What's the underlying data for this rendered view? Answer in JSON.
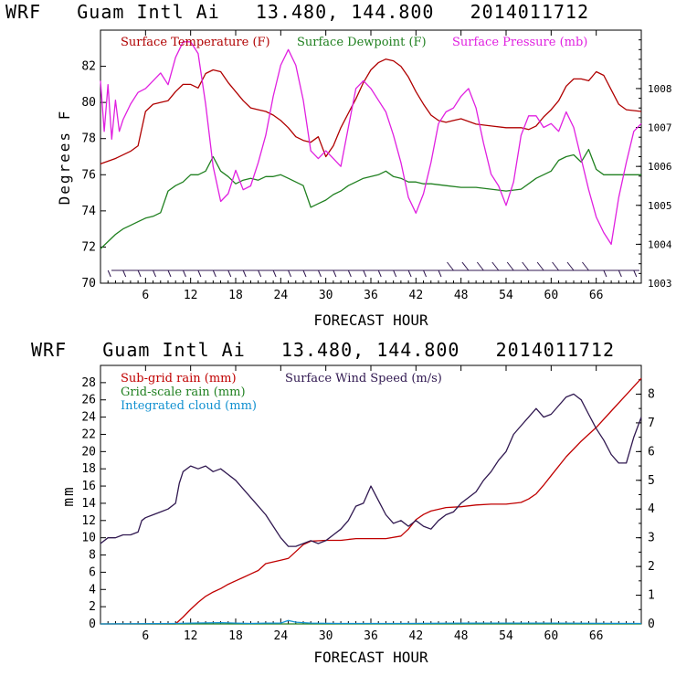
{
  "colors": {
    "temperature": "#b00000",
    "dewpoint": "#208020",
    "pressure": "#e020e0",
    "wind_barb": "#301850",
    "subgrid_rain": "#c00000",
    "gridscale_rain": "#208020",
    "cloud": "#1090d0",
    "wind_speed": "#301850"
  },
  "chart_data": [
    {
      "type": "line",
      "title": "WRF   Guam Intl Ai   13.480, 144.800   2014011712",
      "xlabel": "FORECAST HOUR",
      "ylabel": "Degrees F",
      "xlim": [
        0,
        72
      ],
      "ylim": [
        70,
        84
      ],
      "y2lim": [
        1003,
        1009.5
      ],
      "xticks": [
        "6",
        "12",
        "18",
        "24",
        "30",
        "36",
        "42",
        "48",
        "54",
        "60",
        "66"
      ],
      "yticks": [
        "70",
        "72",
        "74",
        "76",
        "78",
        "80",
        "82"
      ],
      "y2ticks": [
        "1003",
        "1004",
        "1005",
        "1006",
        "1007",
        "1008"
      ],
      "legend": [
        "Surface Temperature (F)",
        "Surface Dewpoint (F)",
        "Surface Pressure (mb)"
      ],
      "series": [
        {
          "name": "Surface Temperature (F)",
          "axis": "left",
          "x": [
            0,
            2,
            4,
            5,
            6,
            7,
            8,
            9,
            10,
            11,
            12,
            13,
            14,
            15,
            16,
            17,
            18,
            19,
            20,
            21,
            22,
            23,
            24,
            25,
            26,
            27,
            28,
            29,
            30,
            31,
            32,
            33,
            34,
            35,
            36,
            37,
            38,
            39,
            40,
            41,
            42,
            43,
            44,
            45,
            46,
            47,
            48,
            50,
            52,
            54,
            56,
            57,
            58,
            59,
            60,
            61,
            62,
            63,
            64,
            65,
            66,
            67,
            68,
            69,
            70,
            72
          ],
          "values": [
            76.6,
            76.9,
            77.3,
            77.6,
            79.5,
            79.9,
            80.0,
            80.1,
            80.6,
            81.0,
            81.0,
            80.8,
            81.6,
            81.8,
            81.7,
            81.1,
            80.6,
            80.1,
            79.7,
            79.6,
            79.5,
            79.3,
            79.0,
            78.6,
            78.1,
            77.9,
            77.8,
            78.1,
            77.0,
            77.6,
            78.6,
            79.4,
            80.2,
            81.1,
            81.8,
            82.2,
            82.4,
            82.3,
            82.0,
            81.4,
            80.6,
            79.9,
            79.3,
            79.0,
            78.9,
            79.0,
            79.1,
            78.8,
            78.7,
            78.6,
            78.6,
            78.5,
            78.7,
            79.2,
            79.6,
            80.1,
            80.9,
            81.3,
            81.3,
            81.2,
            81.7,
            81.5,
            80.7,
            79.9,
            79.6,
            79.5
          ]
        },
        {
          "name": "Surface Dewpoint (F)",
          "axis": "left",
          "x": [
            0,
            1,
            2,
            3,
            4,
            5,
            6,
            7,
            8,
            9,
            10,
            11,
            12,
            13,
            14,
            15,
            16,
            17,
            18,
            19,
            20,
            21,
            22,
            23,
            24,
            25,
            26,
            27,
            28,
            29,
            30,
            31,
            32,
            33,
            34,
            35,
            36,
            37,
            38,
            39,
            40,
            41,
            42,
            43,
            44,
            46,
            48,
            50,
            52,
            54,
            56,
            58,
            60,
            61,
            62,
            63,
            64,
            65,
            66,
            67,
            68,
            69,
            70,
            72
          ],
          "values": [
            71.9,
            72.3,
            72.7,
            73.0,
            73.2,
            73.4,
            73.6,
            73.7,
            73.9,
            75.1,
            75.4,
            75.6,
            76.0,
            76.0,
            76.2,
            77.0,
            76.2,
            75.9,
            75.5,
            75.7,
            75.8,
            75.7,
            75.9,
            75.9,
            76.0,
            75.8,
            75.6,
            75.4,
            74.2,
            74.4,
            74.6,
            74.9,
            75.1,
            75.4,
            75.6,
            75.8,
            75.9,
            76.0,
            76.2,
            75.9,
            75.8,
            75.6,
            75.6,
            75.5,
            75.5,
            75.4,
            75.3,
            75.3,
            75.2,
            75.1,
            75.2,
            75.8,
            76.2,
            76.8,
            77.0,
            77.1,
            76.7,
            77.4,
            76.3,
            76.0,
            76.0,
            76.0,
            76.0,
            76.0
          ]
        },
        {
          "name": "Surface Pressure (mb)",
          "axis": "right",
          "x": [
            0,
            0.5,
            1,
            1.5,
            2,
            2.5,
            3,
            4,
            5,
            6,
            7,
            8,
            9,
            10,
            11,
            12,
            13,
            14,
            15,
            16,
            17,
            18,
            19,
            20,
            21,
            22,
            23,
            24,
            25,
            26,
            27,
            28,
            29,
            30,
            31,
            32,
            33,
            34,
            35,
            36,
            37,
            38,
            39,
            40,
            41,
            42,
            43,
            44,
            45,
            46,
            47,
            48,
            49,
            50,
            51,
            52,
            53,
            54,
            55,
            56,
            57,
            58,
            59,
            60,
            61,
            62,
            63,
            64,
            65,
            66,
            67,
            68,
            69,
            70,
            71,
            72
          ],
          "values": [
            1008.2,
            1006.9,
            1008.1,
            1006.7,
            1007.7,
            1006.9,
            1007.2,
            1007.6,
            1007.9,
            1008.0,
            1008.2,
            1008.4,
            1008.1,
            1008.8,
            1009.2,
            1009.2,
            1008.9,
            1007.6,
            1006.0,
            1005.1,
            1005.3,
            1005.9,
            1005.4,
            1005.5,
            1006.1,
            1006.8,
            1007.8,
            1008.6,
            1009.0,
            1008.6,
            1007.7,
            1006.4,
            1006.2,
            1006.4,
            1006.2,
            1006.0,
            1007.0,
            1008.0,
            1008.2,
            1008.0,
            1007.7,
            1007.4,
            1006.8,
            1006.1,
            1005.2,
            1004.8,
            1005.3,
            1006.1,
            1007.1,
            1007.4,
            1007.5,
            1007.8,
            1008.0,
            1007.5,
            1006.6,
            1005.8,
            1005.5,
            1005.0,
            1005.6,
            1006.8,
            1007.3,
            1007.3,
            1007.0,
            1007.1,
            1006.9,
            1007.4,
            1007.0,
            1006.2,
            1005.4,
            1004.7,
            1004.3,
            1004.0,
            1005.2,
            1006.1,
            1006.9,
            1007.1
          ]
        }
      ]
    },
    {
      "type": "line",
      "title": "WRF   Guam Intl Ai   13.480, 144.800   2014011712",
      "xlabel": "FORECAST HOUR",
      "ylabel": "mm",
      "xlim": [
        0,
        72
      ],
      "ylim": [
        0,
        30
      ],
      "y2lim": [
        0,
        9
      ],
      "xticks": [
        "6",
        "12",
        "18",
        "24",
        "30",
        "36",
        "42",
        "48",
        "54",
        "60",
        "66"
      ],
      "yticks": [
        "0",
        "2",
        "4",
        "6",
        "8",
        "10",
        "12",
        "14",
        "16",
        "18",
        "20",
        "22",
        "24",
        "26",
        "28"
      ],
      "y2ticks": [
        "0",
        "1",
        "2",
        "3",
        "4",
        "5",
        "6",
        "7",
        "8"
      ],
      "legend": [
        "Sub-grid rain (mm)",
        "Grid-scale rain (mm)",
        "Integrated cloud (mm)",
        "Surface Wind Speed (m/s)"
      ],
      "series": [
        {
          "name": "Sub-grid rain (mm)",
          "axis": "left",
          "x": [
            0,
            10,
            11,
            12,
            13,
            14,
            15,
            16,
            17,
            18,
            19,
            20,
            21,
            22,
            23,
            24,
            25,
            26,
            27,
            28,
            30,
            32,
            34,
            36,
            38,
            40,
            41,
            42,
            43,
            44,
            46,
            48,
            50,
            52,
            54,
            56,
            57,
            58,
            59,
            60,
            62,
            64,
            66,
            68,
            70,
            72
          ],
          "values": [
            0,
            0,
            0.8,
            1.7,
            2.5,
            3.2,
            3.7,
            4.1,
            4.6,
            5.0,
            5.4,
            5.8,
            6.2,
            7.0,
            7.2,
            7.4,
            7.6,
            8.4,
            9.2,
            9.6,
            9.7,
            9.7,
            9.9,
            9.9,
            9.9,
            10.2,
            11.0,
            12.1,
            12.7,
            13.1,
            13.5,
            13.6,
            13.8,
            13.9,
            13.9,
            14.1,
            14.5,
            15.1,
            16.1,
            17.2,
            19.4,
            21.2,
            22.8,
            24.7,
            26.6,
            28.5
          ]
        },
        {
          "name": "Grid-scale rain (mm)",
          "axis": "left",
          "x": [
            0,
            72
          ],
          "values": [
            0,
            0
          ]
        },
        {
          "name": "Integrated cloud (mm)",
          "axis": "left",
          "x": [
            0,
            10,
            12,
            16,
            18,
            20,
            22,
            24,
            25,
            26,
            28,
            32,
            40,
            50,
            60,
            72
          ],
          "values": [
            0,
            0.05,
            0.1,
            0.15,
            0.1,
            0.05,
            0.1,
            0.1,
            0.4,
            0.2,
            0.1,
            0.05,
            0.05,
            0.1,
            0.1,
            0.05
          ]
        },
        {
          "name": "Surface Wind Speed (m/s)",
          "axis": "right",
          "x": [
            0,
            1,
            2,
            3,
            4,
            5,
            5.5,
            6,
            7,
            8,
            9,
            10,
            10.5,
            11,
            12,
            13,
            14,
            15,
            16,
            17,
            18,
            19,
            20,
            21,
            22,
            23,
            24,
            25,
            26,
            27,
            28,
            29,
            30,
            31,
            32,
            33,
            34,
            35,
            36,
            37,
            38,
            39,
            40,
            41,
            42,
            43,
            44,
            45,
            46,
            47,
            48,
            49,
            50,
            51,
            52,
            53,
            54,
            55,
            56,
            57,
            58,
            59,
            60,
            61,
            62,
            63,
            64,
            65,
            66,
            67,
            68,
            69,
            70,
            71,
            72
          ],
          "values": [
            2.8,
            3.0,
            3.0,
            3.1,
            3.1,
            3.2,
            3.6,
            3.7,
            3.8,
            3.9,
            4.0,
            4.2,
            4.9,
            5.3,
            5.5,
            5.4,
            5.5,
            5.3,
            5.4,
            5.2,
            5.0,
            4.7,
            4.4,
            4.1,
            3.8,
            3.4,
            3.0,
            2.7,
            2.7,
            2.8,
            2.9,
            2.8,
            2.9,
            3.1,
            3.3,
            3.6,
            4.1,
            4.2,
            4.8,
            4.3,
            3.8,
            3.5,
            3.6,
            3.4,
            3.6,
            3.4,
            3.3,
            3.6,
            3.8,
            3.9,
            4.2,
            4.4,
            4.6,
            5.0,
            5.3,
            5.7,
            6.0,
            6.6,
            6.9,
            7.2,
            7.5,
            7.2,
            7.3,
            7.6,
            7.9,
            8.0,
            7.8,
            7.3,
            6.8,
            6.4,
            5.9,
            5.6,
            5.6,
            6.5,
            7.2
          ]
        }
      ]
    }
  ]
}
